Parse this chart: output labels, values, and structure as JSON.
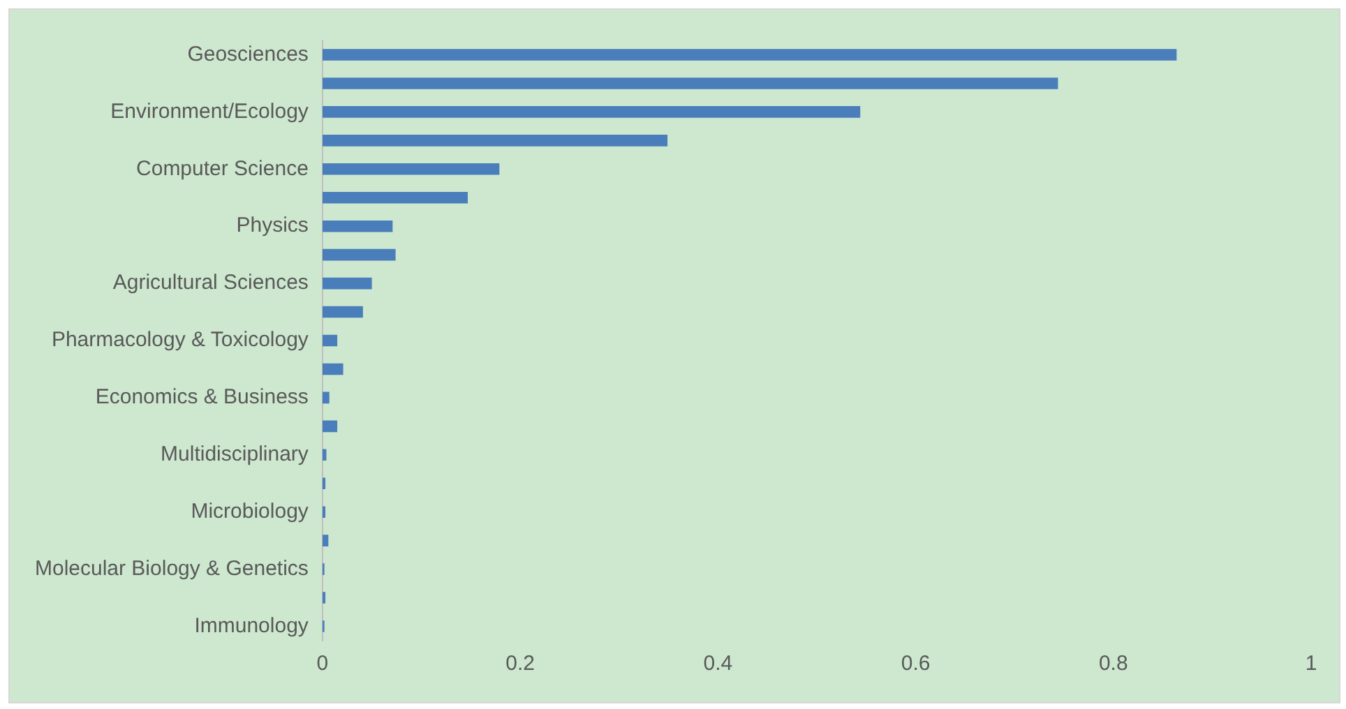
{
  "chart_data": {
    "type": "bar",
    "orientation": "horizontal",
    "categories": [
      "Geosciences",
      null,
      "Environment/Ecology",
      null,
      "Computer Science",
      null,
      "Physics",
      null,
      "Agricultural Sciences",
      null,
      "Pharmacology & Toxicology",
      null,
      "Economics & Business",
      null,
      "Multidisciplinary",
      null,
      "Microbiology",
      null,
      "Molecular Biology & Genetics",
      null,
      "Immunology"
    ],
    "values": [
      0.864,
      0.744,
      0.544,
      0.349,
      0.179,
      0.147,
      0.071,
      0.074,
      0.05,
      0.041,
      0.015,
      0.021,
      0.007,
      0.015,
      0.004,
      0.003,
      0.003,
      0.006,
      0.002,
      0.003,
      0.002
    ],
    "color": "#4a7ebb",
    "xlim": [
      0,
      1
    ],
    "xticks": [
      0,
      0.2,
      0.4,
      0.6,
      0.8,
      1
    ],
    "grid": false,
    "legend": false
  }
}
